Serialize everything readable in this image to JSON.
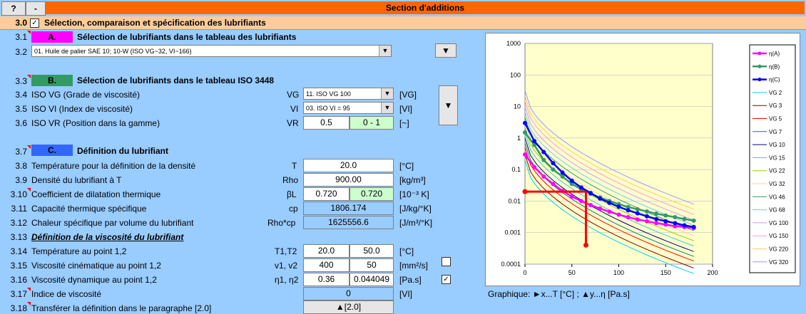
{
  "topbar": {
    "help_label": "?",
    "minus_label": "-",
    "title": "Section d'additions"
  },
  "section": {
    "num": "3.0",
    "title": "Sélection, comparaison et spécification des lubrifiants"
  },
  "a": {
    "num": "3.1",
    "tag": "A.",
    "title": "Sélection de lubrifiants dans le tableau des lubrifiants",
    "color": "#ff00ff"
  },
  "r32": {
    "num": "3.2",
    "value": "01. Huile de palier SAE 10; 10-W (ISO VG~32, VI~166)"
  },
  "b": {
    "num": "3.3",
    "tag": "B.",
    "title": "Sélection de lubrifiants dans le tableau ISO 3448",
    "color": "#339966"
  },
  "r34": {
    "num": "3.4",
    "label": "ISO VG (Grade de viscosité)",
    "sym": "VG",
    "value": "11. ISO VG 100",
    "unit": "[VG]"
  },
  "r35": {
    "num": "3.5",
    "label": "ISO VI (Index de viscosité)",
    "sym": "VI",
    "value": "03. ISO VI = 95",
    "unit": "[VI]"
  },
  "r36": {
    "num": "3.6",
    "label": "ISO VR (Position dans la gamme)",
    "sym": "VR",
    "v1": "0.5",
    "v2": "0 - 1",
    "unit": "[~]"
  },
  "c": {
    "num": "3.7",
    "tag": "C.",
    "title": "Définition du lubrifiant",
    "color": "#3366ff"
  },
  "r38": {
    "num": "3.8",
    "label": "Température pour la définition de la densité",
    "sym": "T",
    "value": "20.0",
    "unit": "[°C]"
  },
  "r39": {
    "num": "3.9",
    "label": "Densité du lubrifiant à T",
    "sym": "Rho",
    "value": "900.00",
    "unit": "[kg/m³]"
  },
  "r310": {
    "num": "3.10",
    "label": "Coefficient de dilatation thermique",
    "sym": "βL",
    "v1": "0.720",
    "v2": "0.720",
    "unit": "[10⁻³ K]"
  },
  "r311": {
    "num": "3.11",
    "label": "Capacité thermique spécifique",
    "sym": "cp",
    "value": "1806.174",
    "unit": "[J/kg/°K]"
  },
  "r312": {
    "num": "3.12",
    "label": "Chaleur spécifique par volume du lubrifiant",
    "sym": "Rho*cp",
    "value": "1625556.6",
    "unit": "[J/m³/°K]"
  },
  "r313": {
    "num": "3.13",
    "label": "Définition de la viscosité du lubrifiant"
  },
  "r314": {
    "num": "3.14",
    "label": "Température au point 1,2",
    "sym": "T1,T2",
    "v1": "20.0",
    "v2": "50.0",
    "unit": "[°C]"
  },
  "r315": {
    "num": "3.15",
    "label": "Viscosité cinématique au point 1,2",
    "sym": "v1, v2",
    "v1": "400",
    "v2": "50",
    "unit": "[mm²/s]"
  },
  "r316": {
    "num": "3.16",
    "label": "Viscosité dynamique au point 1,2",
    "sym": "η1, η2",
    "v1": "0.36",
    "v2": "0.044049",
    "unit": "[Pa.s]"
  },
  "r317": {
    "num": "3.17",
    "label": "Indice de viscosité",
    "value": "0",
    "unit": "[VI]"
  },
  "r318": {
    "num": "3.18",
    "label": "Transférer la définition dans le paragraphe [2.0]",
    "button": "▲[2.0]"
  },
  "chart_caption": "Graphique: ►x...T [°C] ;    ▲y...η [Pa.s]",
  "chart_data": {
    "type": "line",
    "x_ticks": [
      "0",
      "50",
      "100",
      "150",
      "200"
    ],
    "y_ticks": [
      "1000",
      "100",
      "10",
      "1",
      "0.1",
      "0.01",
      "0.001",
      "0.0001"
    ],
    "xlim": [
      0,
      200
    ],
    "ylim": [
      0.0001,
      1000
    ],
    "log_y": true,
    "legend_position": "right",
    "series": [
      {
        "name": "η(A)",
        "color": "#ff00ff",
        "x": [
          0,
          10,
          20,
          30,
          40,
          50,
          60,
          70,
          80,
          90,
          100,
          110,
          120,
          130,
          140,
          150,
          160,
          170,
          180
        ],
        "y": [
          0.3,
          0.12,
          0.06,
          0.035,
          0.021,
          0.014,
          0.01,
          0.0075,
          0.0058,
          0.0046,
          0.0037,
          0.0031,
          0.0026,
          0.0023,
          0.002,
          0.0018,
          0.0016,
          0.0015,
          0.0014
        ]
      },
      {
        "name": "η(B)",
        "color": "#339966",
        "x": [
          0,
          10,
          20,
          30,
          40,
          50,
          60,
          70,
          80,
          90,
          100,
          110,
          120,
          130,
          140,
          150,
          160,
          170,
          180
        ],
        "y": [
          1.5,
          0.6,
          0.2,
          0.1,
          0.06,
          0.035,
          0.024,
          0.017,
          0.013,
          0.01,
          0.008,
          0.0065,
          0.0055,
          0.0047,
          0.004,
          0.0035,
          0.0031,
          0.0027,
          0.0024
        ]
      },
      {
        "name": "η(C)",
        "color": "#0000ff",
        "x": [
          0,
          10,
          20,
          30,
          40,
          50,
          60,
          70,
          80,
          90,
          100,
          110,
          120,
          130,
          140,
          150,
          160,
          170,
          180
        ],
        "y": [
          3.0,
          0.8,
          0.36,
          0.16,
          0.08,
          0.044,
          0.027,
          0.018,
          0.012,
          0.0088,
          0.0066,
          0.0051,
          0.0041,
          0.0033,
          0.0027,
          0.0023,
          0.002,
          0.0017,
          0.0015
        ]
      },
      {
        "name": "VG 2",
        "color": "#00ccff",
        "k": 0.002
      },
      {
        "name": "VG 3",
        "color": "#800000",
        "k": 0.003
      },
      {
        "name": "VG 5",
        "color": "#ff0000",
        "k": 0.005
      },
      {
        "name": "VG 7",
        "color": "#008080",
        "k": 0.007
      },
      {
        "name": "VG 10",
        "color": "#000080",
        "k": 0.01
      },
      {
        "name": "VG 15",
        "color": "#33cccc",
        "k": 0.015
      },
      {
        "name": "VG 22",
        "color": "#99cc00",
        "k": 0.022
      },
      {
        "name": "VG 32",
        "color": "#ffcc99",
        "k": 0.032
      },
      {
        "name": "VG 46",
        "color": "#339966",
        "k": 0.046
      },
      {
        "name": "VG 68",
        "color": "#66ccff",
        "k": 0.068
      },
      {
        "name": "VG 100",
        "color": "#cc99ff",
        "k": 0.1
      },
      {
        "name": "VG 150",
        "color": "#ff99cc",
        "k": 0.15
      },
      {
        "name": "VG 220",
        "color": "#ffcc66",
        "k": 0.22
      },
      {
        "name": "VG 320",
        "color": "#9999ff",
        "k": 0.32
      }
    ],
    "marker_lines": {
      "color": "#ff0000",
      "x": 65,
      "y_level": 0.02,
      "y_end": 0.0004
    }
  }
}
